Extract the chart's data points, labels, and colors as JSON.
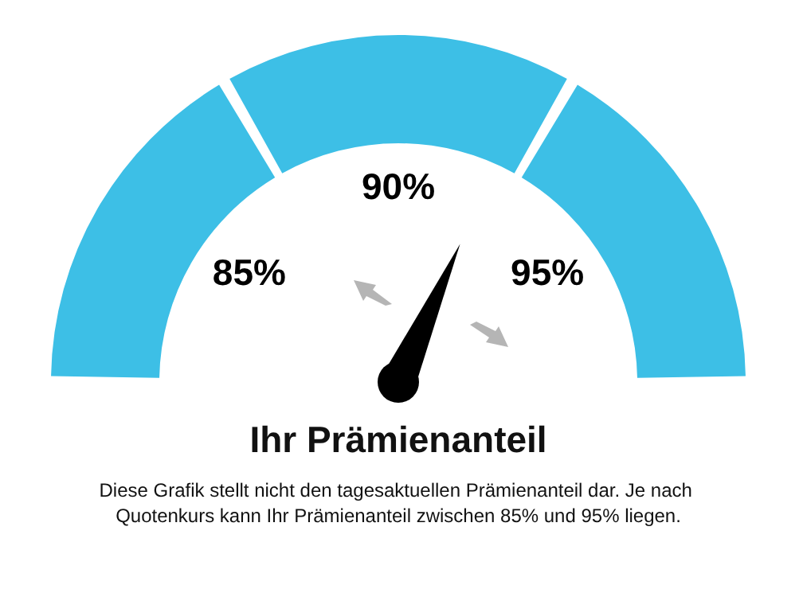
{
  "chart_data": {
    "type": "donut",
    "title": "Ihr Prämienanteil",
    "categories": [
      "85%",
      "90%",
      "95%"
    ],
    "values": [
      33.3,
      33.4,
      33.3
    ],
    "colors": [
      "#3dbfe6",
      "#3dbfe6",
      "#3dbfe6"
    ],
    "needle": "90%",
    "annotations": [
      "Diese Grafik stellt nicht den tagesaktuellen Prämienanteil dar. Je nach Quotenkurs kann Ihr Prämienanteil zwischen 85% und 95% liegen."
    ]
  }
}
